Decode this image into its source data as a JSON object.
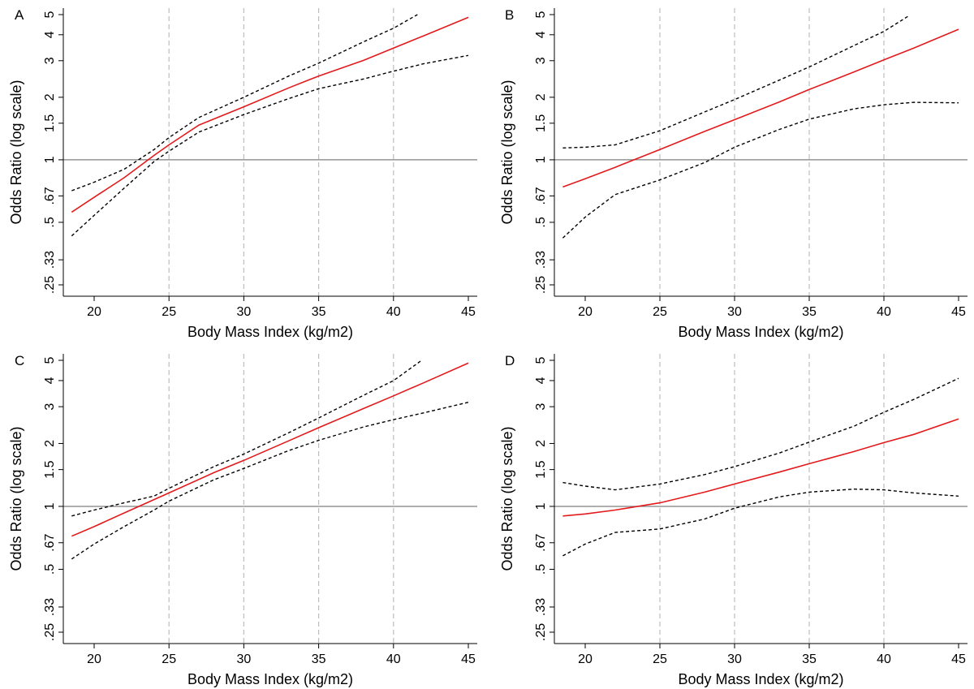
{
  "colors": {
    "estimate": "#e31a1c",
    "ci": "#000000",
    "reference": "#7f7f7f",
    "grid": "#bdbdbd",
    "axis": "#000000"
  },
  "chart_data": [
    {
      "panel_label": "A",
      "type": "line",
      "xlabel": "Body Mass Index (kg/m2)",
      "ylabel": "Odds Ratio (log scale)",
      "y_scale": "log",
      "xlim": [
        18.5,
        45
      ],
      "ylim": [
        0.22,
        5.2
      ],
      "x_ticks": [
        20,
        25,
        30,
        35,
        40,
        45
      ],
      "y_ticks": [
        {
          "value": 0.25,
          "label": ".25"
        },
        {
          "value": 0.33,
          "label": ".33"
        },
        {
          "value": 0.5,
          "label": ".5"
        },
        {
          "value": 0.67,
          "label": ".67"
        },
        {
          "value": 1,
          "label": "1"
        },
        {
          "value": 1.5,
          "label": "1.5"
        },
        {
          "value": 2,
          "label": "2"
        },
        {
          "value": 3,
          "label": "3"
        },
        {
          "value": 4,
          "label": "4"
        },
        {
          "value": 5,
          "label": "5"
        }
      ],
      "x_grid": [
        25,
        30,
        35,
        40
      ],
      "reference_line": 1,
      "series": [
        {
          "role": "estimate",
          "style": "solid",
          "points": [
            [
              18.5,
              0.56
            ],
            [
              20,
              0.66
            ],
            [
              22,
              0.82
            ],
            [
              24,
              1.05
            ],
            [
              25,
              1.18
            ],
            [
              27,
              1.47
            ],
            [
              30,
              1.8
            ],
            [
              33,
              2.22
            ],
            [
              35,
              2.53
            ],
            [
              38,
              3.01
            ],
            [
              40,
              3.45
            ],
            [
              42,
              3.95
            ],
            [
              45,
              4.85
            ]
          ]
        },
        {
          "role": "ci_upper",
          "style": "dashed",
          "points": [
            [
              18.5,
              0.71
            ],
            [
              20,
              0.78
            ],
            [
              22,
              0.9
            ],
            [
              24,
              1.12
            ],
            [
              25,
              1.28
            ],
            [
              27,
              1.6
            ],
            [
              30,
              2.0
            ],
            [
              33,
              2.53
            ],
            [
              35,
              2.92
            ],
            [
              38,
              3.7
            ],
            [
              40,
              4.3
            ],
            [
              41.6,
              5.0
            ]
          ]
        },
        {
          "role": "ci_lower",
          "style": "dashed",
          "points": [
            [
              18.5,
              0.43
            ],
            [
              20,
              0.54
            ],
            [
              22,
              0.73
            ],
            [
              24,
              0.98
            ],
            [
              25,
              1.1
            ],
            [
              27,
              1.36
            ],
            [
              30,
              1.65
            ],
            [
              33,
              1.97
            ],
            [
              35,
              2.2
            ],
            [
              38,
              2.45
            ],
            [
              40,
              2.67
            ],
            [
              42,
              2.9
            ],
            [
              45,
              3.18
            ]
          ]
        }
      ]
    },
    {
      "panel_label": "B",
      "type": "line",
      "xlabel": "Body Mass Index (kg/m2)",
      "ylabel": "Odds Ratio (log scale)",
      "y_scale": "log",
      "xlim": [
        18.5,
        45
      ],
      "ylim": [
        0.22,
        5.2
      ],
      "x_ticks": [
        20,
        25,
        30,
        35,
        40,
        45
      ],
      "y_ticks": [
        {
          "value": 0.25,
          "label": ".25"
        },
        {
          "value": 0.33,
          "label": ".33"
        },
        {
          "value": 0.5,
          "label": ".5"
        },
        {
          "value": 0.67,
          "label": ".67"
        },
        {
          "value": 1,
          "label": "1"
        },
        {
          "value": 1.5,
          "label": "1.5"
        },
        {
          "value": 2,
          "label": "2"
        },
        {
          "value": 3,
          "label": "3"
        },
        {
          "value": 4,
          "label": "4"
        },
        {
          "value": 5,
          "label": "5"
        }
      ],
      "x_grid": [
        25,
        30,
        35,
        40
      ],
      "reference_line": 1,
      "series": [
        {
          "role": "estimate",
          "style": "solid",
          "points": [
            [
              18.5,
              0.74
            ],
            [
              20,
              0.81
            ],
            [
              22,
              0.92
            ],
            [
              25,
              1.12
            ],
            [
              28,
              1.37
            ],
            [
              30,
              1.56
            ],
            [
              33,
              1.9
            ],
            [
              35,
              2.18
            ],
            [
              38,
              2.65
            ],
            [
              40,
              3.03
            ],
            [
              42,
              3.45
            ],
            [
              45,
              4.25
            ]
          ]
        },
        {
          "role": "ci_upper",
          "style": "dashed",
          "points": [
            [
              18.5,
              1.14
            ],
            [
              20,
              1.15
            ],
            [
              22,
              1.18
            ],
            [
              25,
              1.38
            ],
            [
              28,
              1.7
            ],
            [
              30,
              1.95
            ],
            [
              33,
              2.42
            ],
            [
              35,
              2.8
            ],
            [
              38,
              3.55
            ],
            [
              40,
              4.15
            ],
            [
              41.7,
              4.95
            ]
          ]
        },
        {
          "role": "ci_lower",
          "style": "dashed",
          "points": [
            [
              18.5,
              0.42
            ],
            [
              20,
              0.53
            ],
            [
              22,
              0.68
            ],
            [
              25,
              0.8
            ],
            [
              28,
              0.97
            ],
            [
              30,
              1.15
            ],
            [
              33,
              1.4
            ],
            [
              35,
              1.57
            ],
            [
              38,
              1.76
            ],
            [
              40,
              1.84
            ],
            [
              42,
              1.89
            ],
            [
              45,
              1.88
            ]
          ]
        }
      ]
    },
    {
      "panel_label": "C",
      "type": "line",
      "xlabel": "Body Mass Index (kg/m2)",
      "ylabel": "Odds Ratio (log scale)",
      "y_scale": "log",
      "xlim": [
        18.5,
        45
      ],
      "ylim": [
        0.22,
        5.2
      ],
      "x_ticks": [
        20,
        25,
        30,
        35,
        40,
        45
      ],
      "y_ticks": [
        {
          "value": 0.25,
          "label": ".25"
        },
        {
          "value": 0.33,
          "label": ".33"
        },
        {
          "value": 0.5,
          "label": ".5"
        },
        {
          "value": 0.67,
          "label": ".67"
        },
        {
          "value": 1,
          "label": "1"
        },
        {
          "value": 1.5,
          "label": "1.5"
        },
        {
          "value": 2,
          "label": "2"
        },
        {
          "value": 3,
          "label": "3"
        },
        {
          "value": 4,
          "label": "4"
        },
        {
          "value": 5,
          "label": "5"
        }
      ],
      "x_grid": [
        25,
        30,
        35,
        40
      ],
      "reference_line": 1,
      "series": [
        {
          "role": "estimate",
          "style": "solid",
          "points": [
            [
              18.5,
              0.72
            ],
            [
              20,
              0.8
            ],
            [
              22,
              0.93
            ],
            [
              25,
              1.16
            ],
            [
              28,
              1.45
            ],
            [
              30,
              1.66
            ],
            [
              33,
              2.06
            ],
            [
              35,
              2.38
            ],
            [
              38,
              2.94
            ],
            [
              40,
              3.38
            ],
            [
              42,
              3.9
            ],
            [
              45,
              4.85
            ]
          ]
        },
        {
          "role": "ci_upper",
          "style": "dashed",
          "points": [
            [
              18.5,
              0.9
            ],
            [
              20,
              0.96
            ],
            [
              22,
              1.04
            ],
            [
              24,
              1.12
            ],
            [
              25,
              1.22
            ],
            [
              28,
              1.55
            ],
            [
              30,
              1.78
            ],
            [
              33,
              2.25
            ],
            [
              35,
              2.65
            ],
            [
              38,
              3.4
            ],
            [
              40,
              4.0
            ],
            [
              41.8,
              4.95
            ]
          ]
        },
        {
          "role": "ci_lower",
          "style": "dashed",
          "points": [
            [
              18.5,
              0.56
            ],
            [
              20,
              0.66
            ],
            [
              22,
              0.8
            ],
            [
              24,
              0.96
            ],
            [
              25,
              1.06
            ],
            [
              28,
              1.34
            ],
            [
              30,
              1.52
            ],
            [
              33,
              1.85
            ],
            [
              35,
              2.07
            ],
            [
              38,
              2.4
            ],
            [
              40,
              2.6
            ],
            [
              42,
              2.8
            ],
            [
              45,
              3.15
            ]
          ]
        }
      ]
    },
    {
      "panel_label": "D",
      "type": "line",
      "xlabel": "Body Mass Index (kg/m2)",
      "ylabel": "Odds Ratio (log scale)",
      "y_scale": "log",
      "xlim": [
        18.5,
        45
      ],
      "ylim": [
        0.22,
        5.2
      ],
      "x_ticks": [
        20,
        25,
        30,
        35,
        40,
        45
      ],
      "y_ticks": [
        {
          "value": 0.25,
          "label": ".25"
        },
        {
          "value": 0.33,
          "label": ".33"
        },
        {
          "value": 0.5,
          "label": ".5"
        },
        {
          "value": 0.67,
          "label": ".67"
        },
        {
          "value": 1,
          "label": "1"
        },
        {
          "value": 1.5,
          "label": "1.5"
        },
        {
          "value": 2,
          "label": "2"
        },
        {
          "value": 3,
          "label": "3"
        },
        {
          "value": 4,
          "label": "4"
        },
        {
          "value": 5,
          "label": "5"
        }
      ],
      "x_grid": [
        25,
        30,
        35,
        40
      ],
      "reference_line": 1,
      "series": [
        {
          "role": "estimate",
          "style": "solid",
          "points": [
            [
              18.5,
              0.9
            ],
            [
              20,
              0.92
            ],
            [
              22,
              0.96
            ],
            [
              25,
              1.04
            ],
            [
              28,
              1.17
            ],
            [
              30,
              1.28
            ],
            [
              33,
              1.46
            ],
            [
              35,
              1.6
            ],
            [
              38,
              1.83
            ],
            [
              40,
              2.02
            ],
            [
              42,
              2.21
            ],
            [
              45,
              2.62
            ]
          ]
        },
        {
          "role": "ci_upper",
          "style": "dashed",
          "points": [
            [
              18.5,
              1.3
            ],
            [
              20,
              1.25
            ],
            [
              22,
              1.2
            ],
            [
              25,
              1.28
            ],
            [
              28,
              1.42
            ],
            [
              30,
              1.55
            ],
            [
              33,
              1.8
            ],
            [
              35,
              2.03
            ],
            [
              38,
              2.42
            ],
            [
              40,
              2.82
            ],
            [
              42,
              3.25
            ],
            [
              45,
              4.1
            ]
          ]
        },
        {
          "role": "ci_lower",
          "style": "dashed",
          "points": [
            [
              18.5,
              0.58
            ],
            [
              20,
              0.66
            ],
            [
              22,
              0.75
            ],
            [
              25,
              0.78
            ],
            [
              28,
              0.87
            ],
            [
              30,
              0.98
            ],
            [
              33,
              1.11
            ],
            [
              35,
              1.17
            ],
            [
              38,
              1.21
            ],
            [
              40,
              1.2
            ],
            [
              42,
              1.16
            ],
            [
              45,
              1.12
            ]
          ]
        }
      ]
    }
  ]
}
